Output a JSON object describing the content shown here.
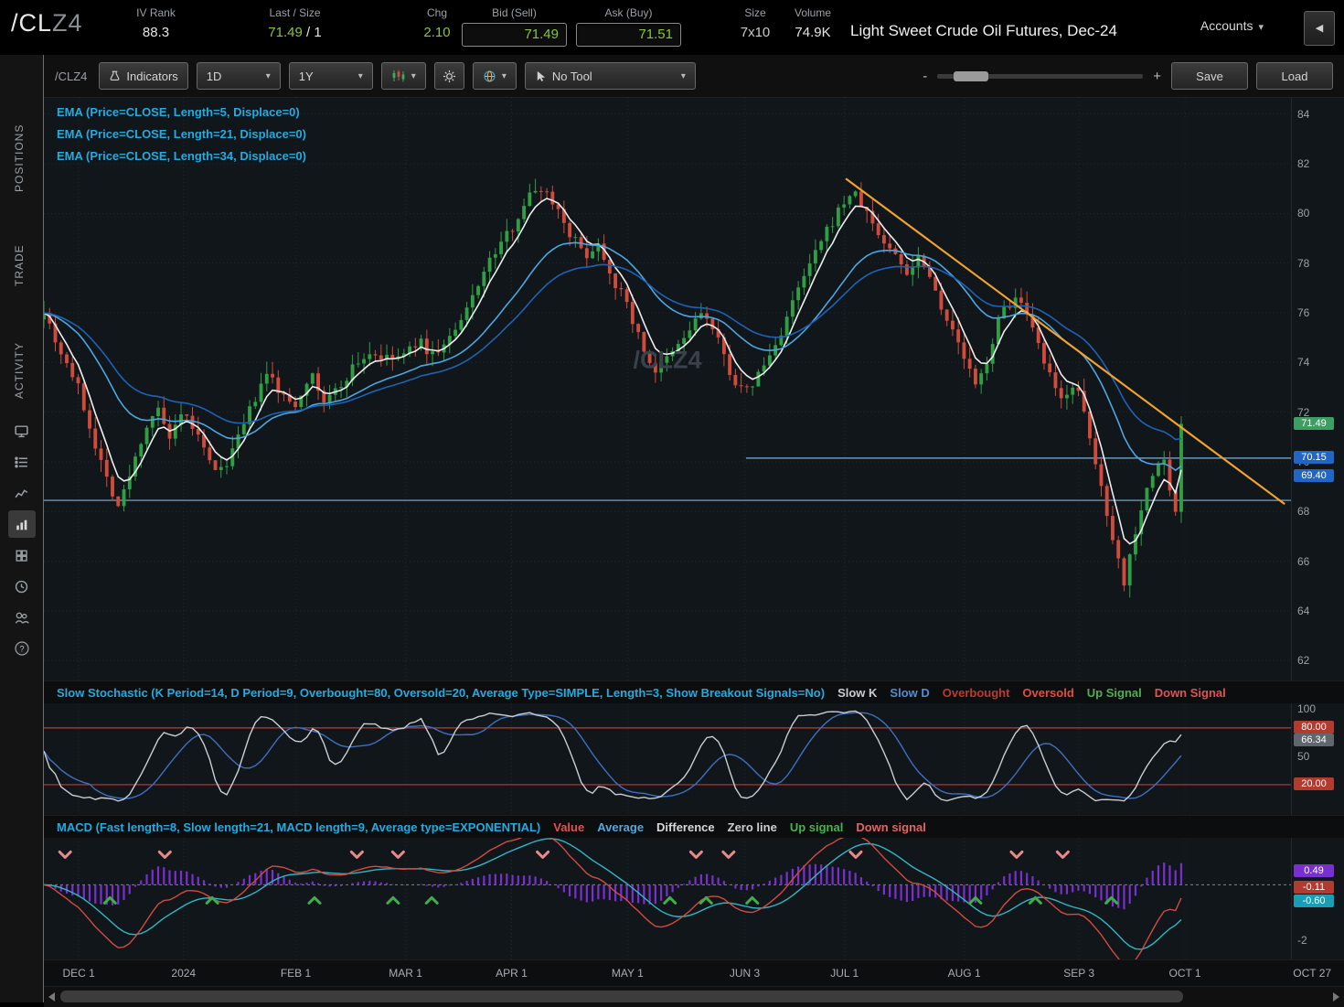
{
  "header": {
    "symbol_main": "/CL",
    "symbol_sub": "Z4",
    "iv_rank_label": "IV Rank",
    "iv_rank": "88.3",
    "last_size_label": "Last / Size",
    "last": "71.49",
    "last_size_rest": " / 1",
    "chg_label": "Chg",
    "chg": "2.10",
    "bid_label": "Bid (Sell)",
    "bid": "71.49",
    "ask_label": "Ask (Buy)",
    "ask": "71.51",
    "size_label": "Size",
    "size": "7x10",
    "volume_label": "Volume",
    "volume": "74.9K",
    "instrument": "Light Sweet Crude Oil Futures, Dec-24",
    "accounts_label": "Accounts"
  },
  "icons": {
    "caret_down": "▾",
    "collapse_left": "◀",
    "help_q": "?"
  },
  "sidebar": {
    "tabs": [
      {
        "label": "POSITIONS"
      },
      {
        "label": "TRADE"
      },
      {
        "label": "ACTIVITY"
      }
    ]
  },
  "toolbar": {
    "symbol": "/CLZ4",
    "indicators_label": "Indicators",
    "timeframe": "1D",
    "range": "1Y",
    "no_tool_label": "No Tool",
    "zoom_minus": "-",
    "zoom_plus": "+",
    "save_label": "Save",
    "load_label": "Load"
  },
  "studies": {
    "watermark": "/CLZ4",
    "ema_lines": [
      "EMA (Price=CLOSE, Length=5, Displace=0)",
      "EMA (Price=CLOSE, Length=21, Displace=0)",
      "EMA (Price=CLOSE, Length=34, Displace=0)"
    ],
    "stoch_title": "Slow Stochastic (K Period=14, D Period=9, Overbought=80, Oversold=20, Average Type=SIMPLE, Length=3, Show Breakout Signals=No)",
    "stoch_legend": [
      {
        "label": "Slow K",
        "color": "#c8cdd2"
      },
      {
        "label": "Slow D",
        "color": "#4f8fd3"
      },
      {
        "label": "Overbought",
        "color": "#c0392b"
      },
      {
        "label": "Oversold",
        "color": "#e74c3c"
      },
      {
        "label": "Up Signal",
        "color": "#4caf50"
      },
      {
        "label": "Down Signal",
        "color": "#e05252"
      }
    ],
    "macd_title": "MACD (Fast length=8, Slow length=21, MACD length=9, Average type=EXPONENTIAL)",
    "macd_legend": [
      {
        "label": "Value",
        "color": "#e05252"
      },
      {
        "label": "Average",
        "color": "#58a6d8"
      },
      {
        "label": "Difference",
        "color": "#d8d8d8"
      },
      {
        "label": "Zero line",
        "color": "#cfcfcf"
      },
      {
        "label": "Up signal",
        "color": "#4caf50"
      },
      {
        "label": "Down signal",
        "color": "#e06666"
      }
    ]
  },
  "chart_data": {
    "type": "candlestick",
    "symbol": "/CLZ4",
    "up_color": "#2f9e44",
    "down_color": "#d04b3c",
    "grid_color": "#20262c",
    "price_axis": {
      "min": 61.2,
      "max": 84.65,
      "ticks": [
        84,
        82,
        80,
        78,
        76,
        74,
        72,
        70,
        68,
        66,
        64,
        62
      ]
    },
    "time_labels": [
      {
        "label": "DEC 1",
        "f": 0.028
      },
      {
        "label": "2024",
        "f": 0.112
      },
      {
        "label": "FEB 1",
        "f": 0.202
      },
      {
        "label": "MAR 1",
        "f": 0.29
      },
      {
        "label": "APR 1",
        "f": 0.375
      },
      {
        "label": "MAY 1",
        "f": 0.468
      },
      {
        "label": "JUN 3",
        "f": 0.562
      },
      {
        "label": "JUL 1",
        "f": 0.642
      },
      {
        "label": "AUG 1",
        "f": 0.738
      },
      {
        "label": "SEP 3",
        "f": 0.83
      },
      {
        "label": "OCT 1",
        "f": 0.915
      },
      {
        "label": "OCT 27",
        "f": 1.017
      }
    ],
    "candles": 200,
    "extent": 0.912,
    "price_path": [
      [
        0.0,
        76.2
      ],
      [
        0.01,
        74.8
      ],
      [
        0.022,
        73.6
      ],
      [
        0.028,
        72.9
      ],
      [
        0.038,
        71.2
      ],
      [
        0.05,
        69.4
      ],
      [
        0.06,
        68.2
      ],
      [
        0.07,
        69.6
      ],
      [
        0.08,
        71.2
      ],
      [
        0.09,
        72.2
      ],
      [
        0.101,
        70.9
      ],
      [
        0.112,
        71.9
      ],
      [
        0.122,
        71.2
      ],
      [
        0.132,
        70.0
      ],
      [
        0.142,
        69.6
      ],
      [
        0.155,
        70.8
      ],
      [
        0.168,
        72.4
      ],
      [
        0.18,
        73.6
      ],
      [
        0.191,
        72.6
      ],
      [
        0.202,
        72.3
      ],
      [
        0.213,
        73.6
      ],
      [
        0.225,
        72.4
      ],
      [
        0.237,
        73.0
      ],
      [
        0.249,
        73.9
      ],
      [
        0.262,
        74.4
      ],
      [
        0.275,
        74.1
      ],
      [
        0.29,
        74.3
      ],
      [
        0.3,
        74.9
      ],
      [
        0.311,
        74.3
      ],
      [
        0.323,
        74.8
      ],
      [
        0.335,
        75.6
      ],
      [
        0.347,
        77.1
      ],
      [
        0.36,
        78.3
      ],
      [
        0.375,
        79.4
      ],
      [
        0.387,
        80.6
      ],
      [
        0.398,
        81.1
      ],
      [
        0.41,
        80.4
      ],
      [
        0.422,
        79.2
      ],
      [
        0.434,
        78.3
      ],
      [
        0.445,
        78.8
      ],
      [
        0.456,
        77.4
      ],
      [
        0.468,
        76.3
      ],
      [
        0.48,
        74.6
      ],
      [
        0.491,
        73.6
      ],
      [
        0.503,
        74.3
      ],
      [
        0.515,
        75.1
      ],
      [
        0.528,
        76.1
      ],
      [
        0.541,
        74.8
      ],
      [
        0.553,
        73.3
      ],
      [
        0.562,
        72.7
      ],
      [
        0.574,
        73.6
      ],
      [
        0.586,
        74.6
      ],
      [
        0.598,
        76.1
      ],
      [
        0.611,
        77.6
      ],
      [
        0.624,
        78.9
      ],
      [
        0.637,
        80.1
      ],
      [
        0.648,
        80.9
      ],
      [
        0.659,
        80.1
      ],
      [
        0.671,
        79.0
      ],
      [
        0.683,
        78.3
      ],
      [
        0.693,
        77.6
      ],
      [
        0.703,
        78.4
      ],
      [
        0.715,
        76.9
      ],
      [
        0.727,
        75.4
      ],
      [
        0.738,
        74.2
      ],
      [
        0.748,
        72.9
      ],
      [
        0.758,
        74.4
      ],
      [
        0.769,
        76.2
      ],
      [
        0.781,
        76.6
      ],
      [
        0.793,
        75.2
      ],
      [
        0.805,
        73.6
      ],
      [
        0.815,
        72.4
      ],
      [
        0.824,
        73.2
      ],
      [
        0.83,
        72.7
      ],
      [
        0.84,
        70.6
      ],
      [
        0.85,
        68.5
      ],
      [
        0.86,
        66.4
      ],
      [
        0.866,
        65.1
      ],
      [
        0.874,
        67.0
      ],
      [
        0.882,
        68.6
      ],
      [
        0.89,
        69.5
      ],
      [
        0.897,
        70.4
      ],
      [
        0.902,
        69.2
      ],
      [
        0.906,
        67.2
      ],
      [
        0.909,
        69.0
      ],
      [
        0.912,
        71.5
      ]
    ],
    "emas": [
      {
        "length": 5,
        "color": "#ededed"
      },
      {
        "length": 21,
        "color": "#4da6e0"
      },
      {
        "length": 34,
        "color": "#1e62b4"
      }
    ],
    "trendline": {
      "color": "#f0a22e",
      "f1": 0.643,
      "p1": 81.4,
      "f2": 0.995,
      "p2": 68.3
    },
    "hlines": [
      {
        "price": 70.15,
        "from": 0.563,
        "to": 1.0,
        "color": "#7fb2d5"
      },
      {
        "price": 68.45,
        "from": 0.0,
        "to": 1.0,
        "color": "#7fb2d5"
      }
    ],
    "price_badges": [
      {
        "value": "71.49",
        "price": 71.49,
        "bg": "#3d9e63",
        "fg": "#ffffff"
      },
      {
        "value": "70.15",
        "price": 70.15,
        "bg": "#2166c4",
        "fg": "#ffffff"
      },
      {
        "value": "69.40",
        "price": 69.4,
        "bg": "#2166c4",
        "fg": "#ffffff"
      }
    ],
    "stoch": {
      "k_period": 14,
      "smooth": 3,
      "d_period": 9,
      "overbought": 80,
      "oversold": 20,
      "k_color": "#c9ced4",
      "d_color": "#3f6fbe",
      "band_color": "#c23b2e",
      "axis_ticks": [
        100,
        50
      ],
      "badges": [
        {
          "value": "80.00",
          "at": 80,
          "bg": "#b23b30",
          "fg": "#ffffff"
        },
        {
          "value": "66.34",
          "at": 66.34,
          "bg": "#5f666d",
          "fg": "#ffffff"
        },
        {
          "value": "20.00",
          "at": 20,
          "bg": "#b23b30",
          "fg": "#ffffff"
        }
      ]
    },
    "macd": {
      "fast": 8,
      "slow": 21,
      "signal": 9,
      "scale": {
        "min": -2.7,
        "max": 1.7
      },
      "value_color": "#d14b42",
      "avg_color": "#33b5c5",
      "hist_color": "#7a2fd0",
      "up_color": "#3fae4c",
      "down_color": "#e98989",
      "axis_ticks": [
        -2
      ],
      "badges": [
        {
          "value": "0.49",
          "at": 0.49,
          "bg": "#7a2fd0",
          "fg": "#ffffff"
        },
        {
          "value": "-0.11",
          "at": -0.11,
          "bg": "#b23b30",
          "fg": "#ffffff"
        },
        {
          "value": "-0.60",
          "at": -0.6,
          "bg": "#1b9db5",
          "fg": "#ffffff"
        }
      ],
      "up_signals": [
        0.053,
        0.135,
        0.217,
        0.28,
        0.311,
        0.502,
        0.531,
        0.568,
        0.747,
        0.795,
        0.856
      ],
      "down_signals": [
        0.017,
        0.097,
        0.251,
        0.284,
        0.4,
        0.523,
        0.549,
        0.651,
        0.78,
        0.817
      ]
    }
  }
}
